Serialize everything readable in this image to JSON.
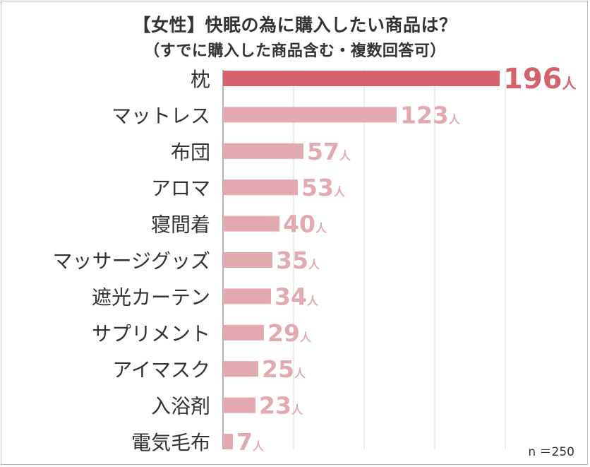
{
  "chart_data": {
    "type": "bar",
    "orientation": "horizontal",
    "title": "【女性】快眠の為に購入したい商品は？",
    "subtitle": "（すでに購入した商品含む・複数回答可）",
    "categories": [
      "枕",
      "マットレス",
      "布団",
      "アロマ",
      "寝間着",
      "マッサージグッズ",
      "遮光カーテン",
      "サプリメント",
      "アイマスク",
      "入浴剤",
      "電気毛布"
    ],
    "values": [
      196,
      123,
      57,
      53,
      40,
      35,
      34,
      29,
      25,
      23,
      7
    ],
    "unit": "人",
    "xlim": [
      0,
      200
    ],
    "grid": true,
    "highlight_index": 0,
    "colors": {
      "highlight": "#d4626e",
      "bar": "#e3a9b0",
      "grid": "#d9d9d9",
      "axis": "#999999",
      "label": "#333333"
    },
    "note": "n ＝250"
  }
}
